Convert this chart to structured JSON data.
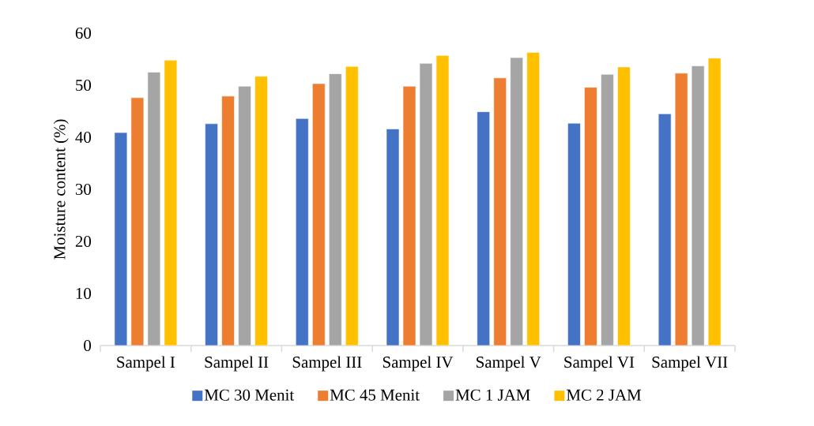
{
  "chart_data": {
    "type": "bar",
    "ylabel": "Moisture content (%)",
    "categories": [
      "Sampel I",
      "Sampel II",
      "Sampel III",
      "Sampel IV",
      "Sampel V",
      "Sampel VI",
      "Sampel VII"
    ],
    "series": [
      {
        "name": "MC 30 Menit",
        "color": "#4472c4",
        "values": [
          40.9,
          42.6,
          43.6,
          41.6,
          44.9,
          42.7,
          44.5
        ]
      },
      {
        "name": "MC 45 Menit",
        "color": "#ed7d31",
        "values": [
          47.6,
          47.9,
          50.3,
          49.8,
          51.4,
          49.6,
          52.3
        ]
      },
      {
        "name": "MC 1 JAM",
        "color": "#a5a5a5",
        "values": [
          52.5,
          49.8,
          52.2,
          54.2,
          55.3,
          52.1,
          53.7
        ]
      },
      {
        "name": "MC 2 JAM",
        "color": "#ffc000",
        "values": [
          54.8,
          51.7,
          53.6,
          55.7,
          56.3,
          53.5,
          55.2
        ]
      }
    ],
    "ylim": [
      0,
      60
    ],
    "yticks": [
      0,
      10,
      20,
      30,
      40,
      50,
      60
    ],
    "legend": "bottom"
  }
}
